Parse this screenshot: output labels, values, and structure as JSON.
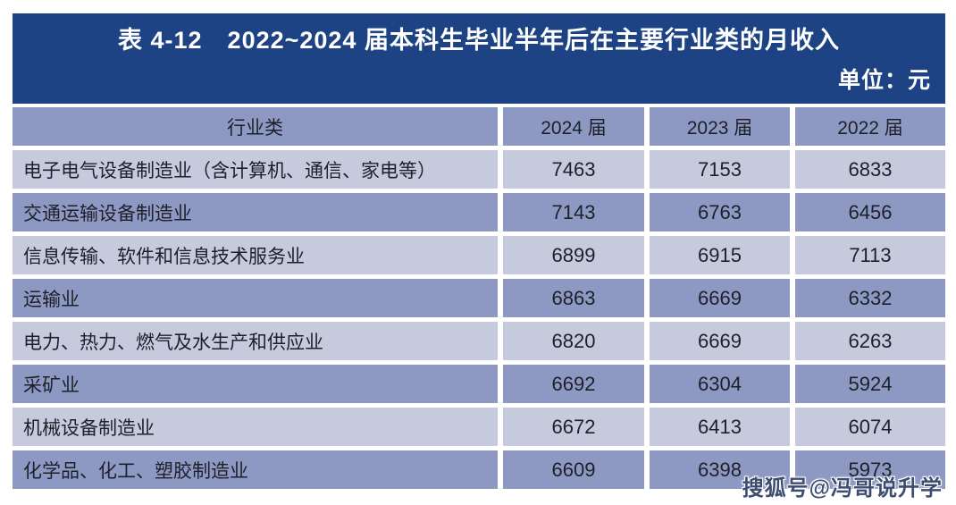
{
  "chart_data": {
    "type": "table",
    "title": "表 4-12　2022~2024 届本科生毕业半年后在主要行业类的月收入",
    "unit": "单位：元",
    "columns": [
      "行业类",
      "2024 届",
      "2023 届",
      "2022 届"
    ],
    "rows": [
      [
        "电子电气设备制造业（含计算机、通信、家电等）",
        "7463",
        "7153",
        "6833"
      ],
      [
        "交通运输设备制造业",
        "7143",
        "6763",
        "6456"
      ],
      [
        "信息传输、软件和信息技术服务业",
        "6899",
        "6915",
        "7113"
      ],
      [
        "运输业",
        "6863",
        "6669",
        "6332"
      ],
      [
        "电力、热力、燃气及水生产和供应业",
        "6820",
        "6669",
        "6263"
      ],
      [
        "采矿业",
        "6692",
        "6304",
        "5924"
      ],
      [
        "机械设备制造业",
        "6672",
        "6413",
        "6074"
      ],
      [
        "化学品、化工、塑胶制造业",
        "6609",
        "6398",
        "5973"
      ]
    ]
  },
  "watermark": "搜狐号@冯哥说升学",
  "colors": {
    "title_band": "#1E4384",
    "header_row": "#8E99C3",
    "row_dark": "#8E99C3",
    "row_light": "#C5CADD",
    "body_text": "#1E2029",
    "title_text": "#FFFFFF",
    "watermark_text": "#3D4C70"
  }
}
